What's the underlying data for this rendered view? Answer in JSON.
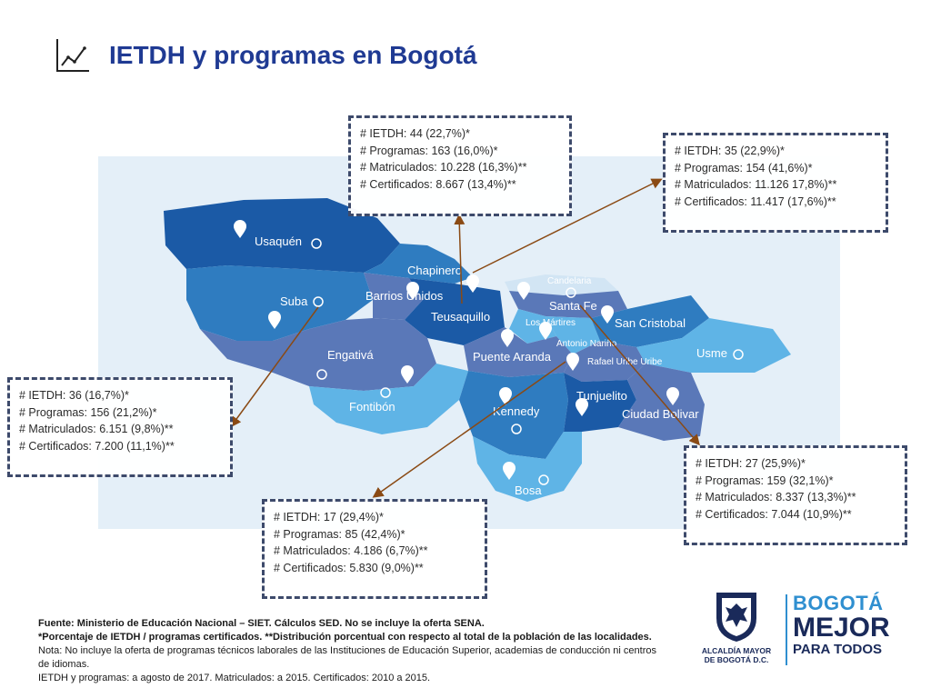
{
  "title": "IETDH y programas en Bogotá",
  "title_icon": "line-chart-icon",
  "colors": {
    "title": "#1f3a93",
    "dark_blue": "#1b5aa6",
    "mid_blue": "#2f7cc0",
    "light_blue": "#5fb4e6",
    "steel_blue": "#5a78b8",
    "pale_blue": "#d2e5f4",
    "box_border": "#3d4a6b",
    "arrow": "#8a4a14"
  },
  "localities": [
    "Usaquén",
    "Chapinero",
    "Barrios Unidos",
    "Teusaquillo",
    "Candelaria",
    "Santa Fe",
    "Suba",
    "Los Mártires",
    "Antonio Nariño",
    "San Cristobal",
    "Engativá",
    "Puente Aranda",
    "Rafael Uribe Uribe",
    "Usme",
    "Fontibón",
    "Kennedy",
    "Tunjuelito",
    "Ciudad Bolivar",
    "Bosa"
  ],
  "boxes": [
    {
      "ietdh": "# IETDH: 44 (22,7%)*",
      "programas": "# Programas: 163 (16,0%)*",
      "matriculados": "# Matriculados: 10.228 (16,3%)**",
      "certificados": "# Certificados: 8.667 (13,4%)**"
    },
    {
      "ietdh": "# IETDH: 35 (22,9%)*",
      "programas": "# Programas: 154 (41,6%)*",
      "matriculados": "# Matriculados: 11.126 17,8%)**",
      "certificados": "# Certificados: 11.417 (17,6%)**"
    },
    {
      "ietdh": "# IETDH: 36 (16,7%)*",
      "programas": "# Programas: 156 (21,2%)*",
      "matriculados": "# Matriculados: 6.151 (9,8%)**",
      "certificados": "# Certificados: 7.200 (11,1%)**"
    },
    {
      "ietdh": "# IETDH: 27 (25,9%)*",
      "programas": "# Programas: 159 (32,1%)*",
      "matriculados": "# Matriculados: 8.337 (13,3%)**",
      "certificados": "# Certificados: 7.044 (10,9%)**"
    },
    {
      "ietdh": "# IETDH: 17 (29,4%)*",
      "programas": "# Programas: 85 (42,4%)*",
      "matriculados": "# Matriculados: 4.186 (6,7%)**",
      "certificados": "# Certificados: 5.830 (9,0%)**"
    }
  ],
  "footer": {
    "line1": "Fuente: Ministerio de Educación Nacional – SIET. Cálculos SED.  No se incluye la oferta  SENA.",
    "line2": "*Porcentaje de IETDH / programas certificados. **Distribución porcentual con respecto al total de la población de las localidades.",
    "line3": "Nota: No incluye la oferta de programas técnicos laborales de las Instituciones de Educación Superior, academias de conducción ni centros de idiomas.",
    "line4": "IETDH y programas: a agosto de 2017. Matriculados: a 2015. Certificados: 2010 a 2015."
  },
  "logos": {
    "alcaldia_line1": "ALCALDÍA MAYOR",
    "alcaldia_line2": "DE BOGOTÁ D.C.",
    "crest_icon": "bogota-coat-of-arms-icon",
    "brand_line1": "BOGOTÁ",
    "brand_line2": "MEJOR",
    "brand_line3": "PARA TODOS"
  }
}
